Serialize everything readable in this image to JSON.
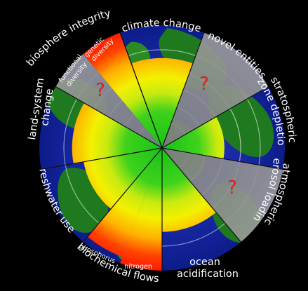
{
  "boundaries": [
    {
      "key": "climate",
      "label": "climate change",
      "status": "increasing-risk"
    },
    {
      "key": "novel",
      "label": "novel entities",
      "status": "not-quantified"
    },
    {
      "key": "ozone",
      "label": "stratospheric ozone depletion",
      "label_lines": [
        "stratospheric",
        "ozone depletion"
      ],
      "status": "safe"
    },
    {
      "key": "aerosol",
      "label": "atmospheric aerosol loading",
      "label_lines": [
        "atmospheric",
        "aerosol loading"
      ],
      "status": "not-quantified"
    },
    {
      "key": "ocean",
      "label": "ocean acidification",
      "label_lines": [
        "ocean",
        "acidification"
      ],
      "status": "safe"
    },
    {
      "key": "biochem",
      "label": "biochemical flows",
      "sub": [
        "phosphorus",
        "nitrogen"
      ],
      "status": "high-risk"
    },
    {
      "key": "fresh",
      "label": "freshwater use",
      "status": "safe"
    },
    {
      "key": "land",
      "label": "land-system change",
      "label_lines": [
        "land-system",
        "change"
      ],
      "status": "increasing-risk"
    },
    {
      "key": "bio",
      "label": "biosphere integrity",
      "sub": [
        "functional diversity",
        "genetic diversity"
      ],
      "status": "high-risk"
    }
  ],
  "unknown_marker": "?",
  "colors": {
    "safe": "#22c41c",
    "increasing": "#e8e800",
    "high": "#ff2a00",
    "unknown": "#8c8c8c",
    "ocean": "#1a2db8",
    "land": "#1f7a1f"
  },
  "zones": {
    "climate": {
      "level": 0.62,
      "status": "increasing-risk"
    },
    "novel": {
      "level": null,
      "status": "not-quantified"
    },
    "ozone": {
      "level": 0.3,
      "status": "safe"
    },
    "aerosol": {
      "level": null,
      "status": "not-quantified"
    },
    "ocean": {
      "level": 0.55,
      "status": "safe"
    },
    "nitrogen": {
      "level": 1.0,
      "status": "high-risk"
    },
    "phosphorus": {
      "level": 0.92,
      "status": "high-risk"
    },
    "freshwater": {
      "level": 0.5,
      "status": "safe"
    },
    "land": {
      "level": 0.62,
      "status": "increasing-risk"
    },
    "functional": {
      "level": null,
      "status": "not-quantified"
    },
    "genetic": {
      "level": 1.0,
      "status": "high-risk"
    }
  }
}
